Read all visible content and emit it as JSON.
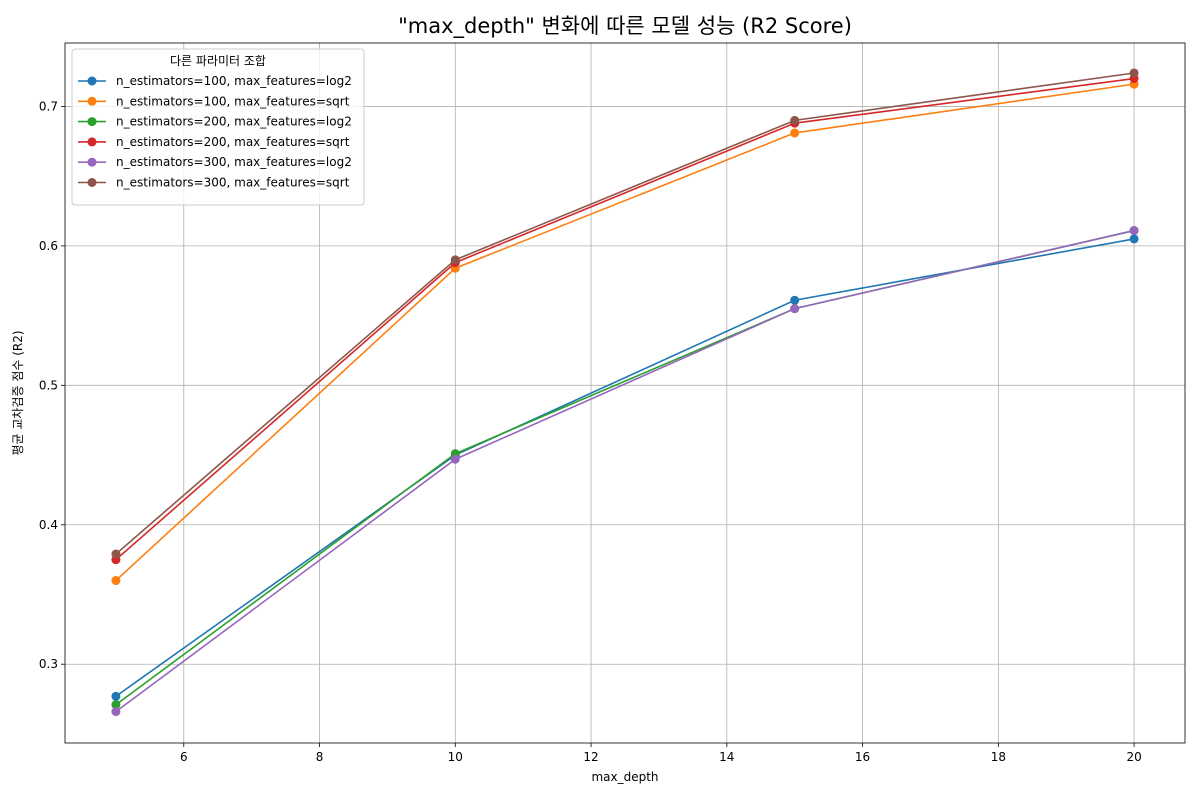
{
  "chart_data": {
    "type": "line",
    "title": "\"max_depth\" 변화에 따른 모델 성능 (R2 Score)",
    "xlabel": "max_depth",
    "ylabel": "평균 교차검증 점수 (R2)",
    "x": [
      5,
      10,
      15,
      20
    ],
    "xlim": [
      4.25,
      20.75
    ],
    "ylim": [
      0.2435,
      0.7455
    ],
    "xticks": [
      6,
      8,
      10,
      12,
      14,
      16,
      18,
      20
    ],
    "yticks": [
      0.3,
      0.4,
      0.5,
      0.6,
      0.7
    ],
    "ytick_labels": [
      "0.3",
      "0.4",
      "0.5",
      "0.6",
      "0.7"
    ],
    "grid": true,
    "legend": {
      "title": "다른 파라미터 조합",
      "placement": "upper-left"
    },
    "series": [
      {
        "name": "n_estimators=100, max_features=log2",
        "color": "#1f77b4",
        "values": [
          0.277,
          0.45,
          0.561,
          0.605
        ]
      },
      {
        "name": "n_estimators=100, max_features=sqrt",
        "color": "#ff7f0e",
        "values": [
          0.36,
          0.584,
          0.681,
          0.716
        ]
      },
      {
        "name": "n_estimators=200, max_features=log2",
        "color": "#2ca02c",
        "values": [
          0.271,
          0.451,
          0.555,
          0.611
        ]
      },
      {
        "name": "n_estimators=200, max_features=sqrt",
        "color": "#d62728",
        "values": [
          0.375,
          0.588,
          0.688,
          0.72
        ]
      },
      {
        "name": "n_estimators=300, max_features=log2",
        "color": "#9467bd",
        "values": [
          0.266,
          0.447,
          0.555,
          0.611
        ]
      },
      {
        "name": "n_estimators=300, max_features=sqrt",
        "color": "#8c564b",
        "values": [
          0.379,
          0.59,
          0.69,
          0.724
        ]
      }
    ]
  }
}
